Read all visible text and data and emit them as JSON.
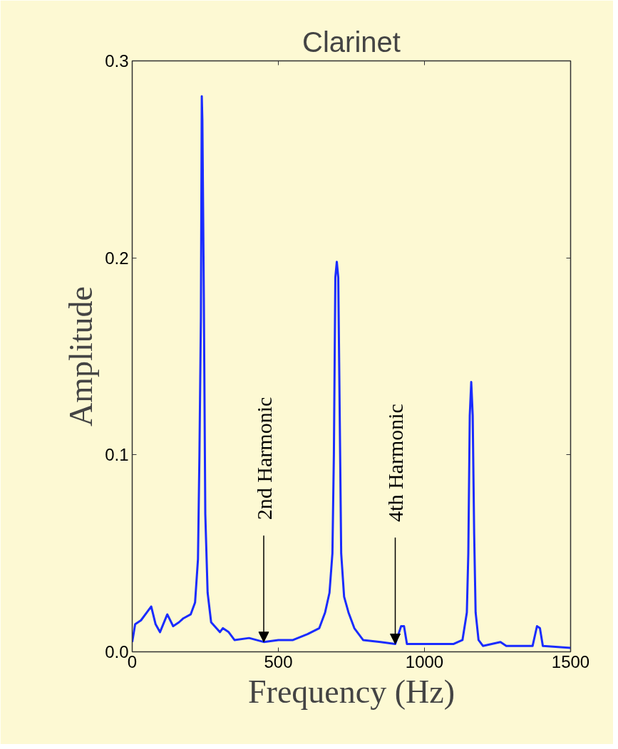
{
  "chart_data": {
    "type": "line",
    "title": "Clarinet",
    "xlabel": "Frequency (Hz)",
    "ylabel": "Amplitude",
    "x": [
      0,
      10,
      30,
      55,
      65,
      80,
      95,
      120,
      140,
      160,
      175,
      200,
      215,
      225,
      230,
      235,
      238,
      240,
      245,
      250,
      258,
      270,
      300,
      310,
      330,
      350,
      400,
      450,
      500,
      550,
      600,
      640,
      660,
      675,
      685,
      690,
      695,
      700,
      705,
      710,
      715,
      725,
      740,
      760,
      790,
      850,
      900,
      920,
      930,
      940,
      1000,
      1050,
      1100,
      1130,
      1145,
      1150,
      1155,
      1160,
      1165,
      1170,
      1175,
      1185,
      1200,
      1260,
      1280,
      1370,
      1385,
      1395,
      1405,
      1500
    ],
    "series": [
      {
        "color": "#1a2cff",
        "values": [
          0.005,
          0.014,
          0.016,
          0.021,
          0.023,
          0.014,
          0.01,
          0.019,
          0.013,
          0.015,
          0.017,
          0.019,
          0.025,
          0.047,
          0.1,
          0.17,
          0.282,
          0.27,
          0.18,
          0.07,
          0.03,
          0.015,
          0.01,
          0.012,
          0.01,
          0.006,
          0.007,
          0.005,
          0.006,
          0.006,
          0.009,
          0.012,
          0.02,
          0.03,
          0.05,
          0.1,
          0.19,
          0.198,
          0.19,
          0.12,
          0.05,
          0.028,
          0.02,
          0.012,
          0.006,
          0.005,
          0.004,
          0.013,
          0.013,
          0.004,
          0.004,
          0.004,
          0.004,
          0.006,
          0.02,
          0.05,
          0.12,
          0.137,
          0.12,
          0.06,
          0.02,
          0.006,
          0.003,
          0.005,
          0.003,
          0.003,
          0.013,
          0.012,
          0.003,
          0.002
        ]
      }
    ],
    "xlim": [
      0,
      1500
    ],
    "ylim": [
      0,
      0.3
    ],
    "xticks": [
      0,
      500,
      1000,
      1500
    ],
    "yticks": [
      {
        "value": 0,
        "label": "0.0"
      },
      0.1,
      0.2,
      0.3
    ],
    "grid": false,
    "marker": "none",
    "line_style": "solid",
    "annotations": [
      {
        "text": "2nd Harmonic",
        "x": 450,
        "y": 0.005
      },
      {
        "text": "4th Harmonic",
        "x": 900,
        "y": 0.004
      }
    ]
  }
}
